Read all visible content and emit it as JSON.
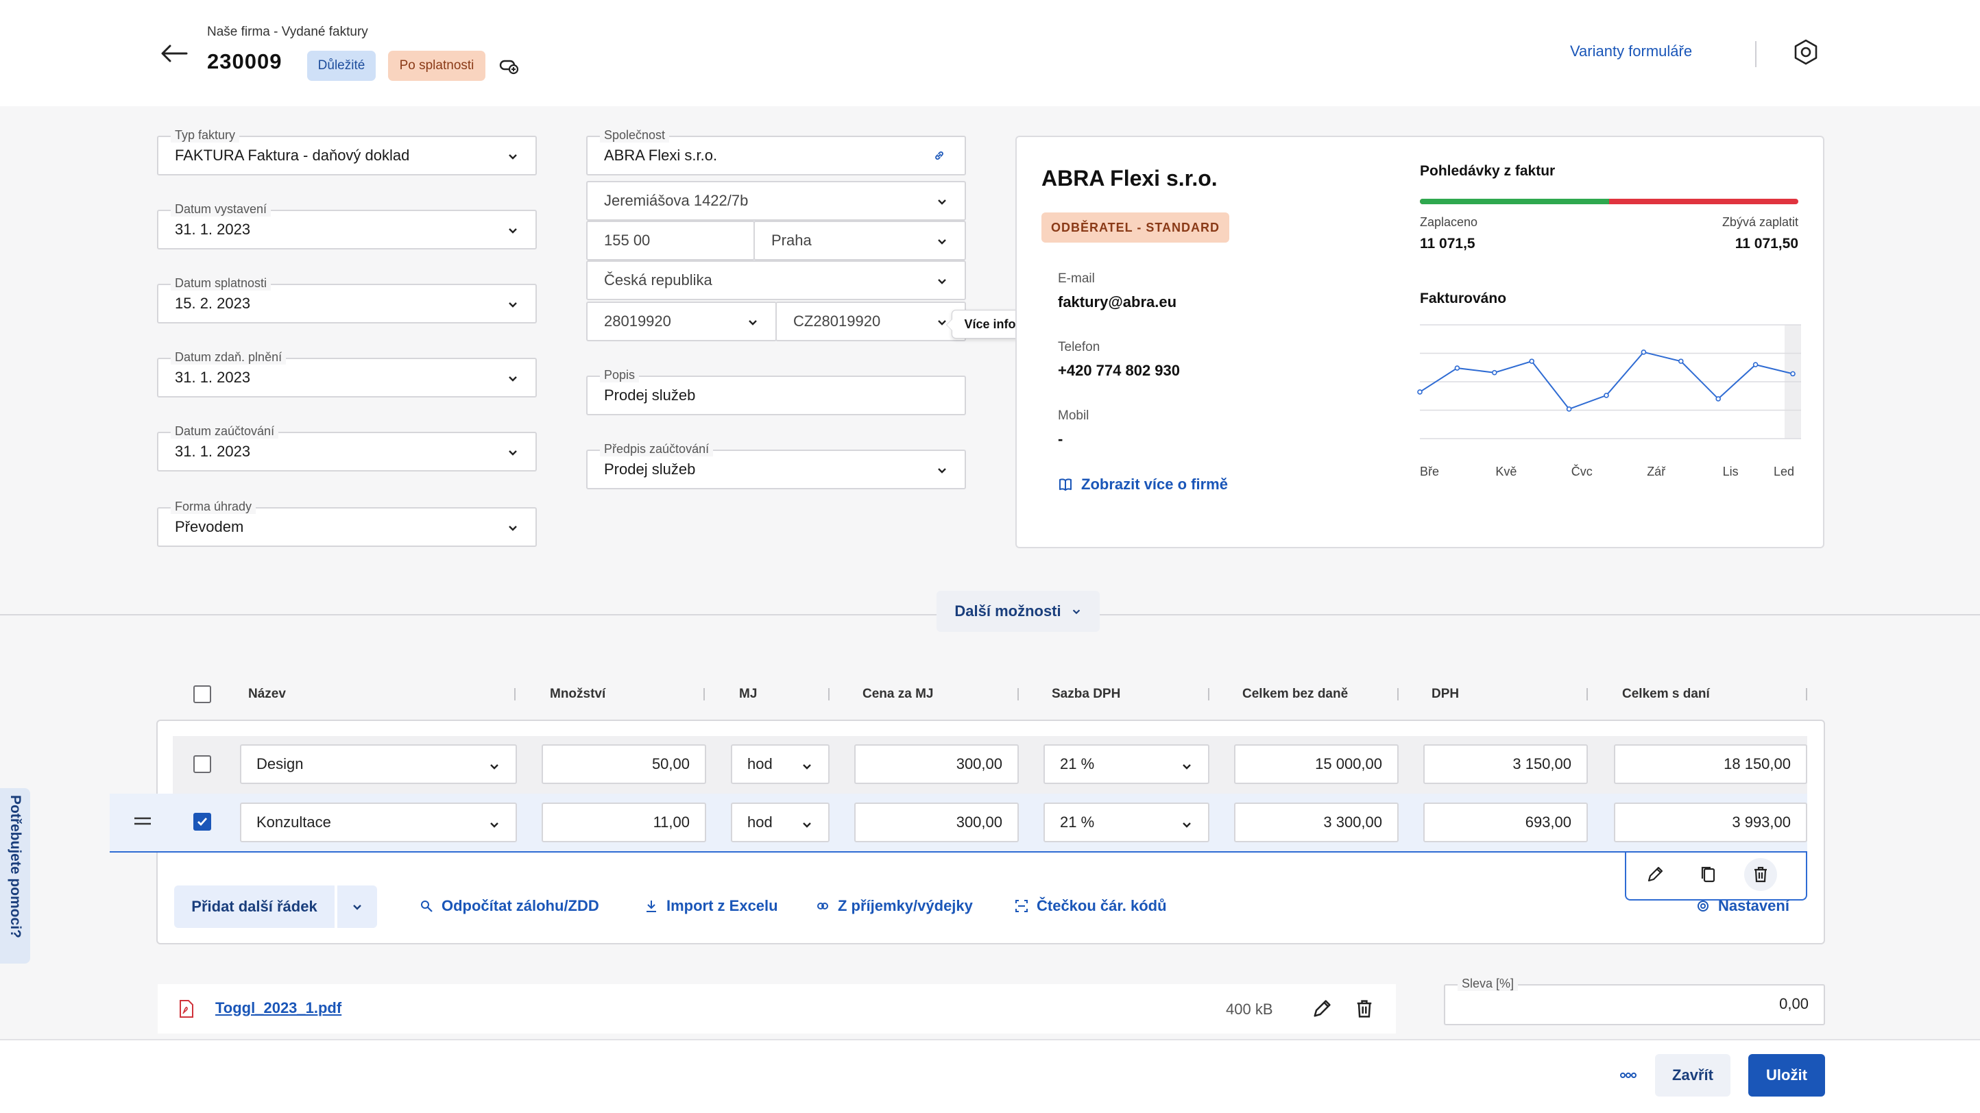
{
  "header": {
    "breadcrumb": "Naše firma - Vydané faktury",
    "invoice_number": "230009",
    "badge_important": "Důležité",
    "badge_overdue": "Po splatnosti",
    "variants_link": "Varianty formuláře"
  },
  "form": {
    "invoice_type": {
      "label": "Typ faktury",
      "value": "FAKTURA Faktura - daňový doklad"
    },
    "issue_date": {
      "label": "Datum vystavení",
      "value": "31. 1. 2023"
    },
    "due_date": {
      "label": "Datum splatnosti",
      "value": "15. 2. 2023"
    },
    "tax_date": {
      "label": "Datum zdaň. plnění",
      "value": "31. 1. 2023"
    },
    "accounting_date": {
      "label": "Datum zaúčtování",
      "value": "31. 1. 2023"
    },
    "payment_method": {
      "label": "Forma úhrady",
      "value": "Převodem"
    },
    "company": {
      "label": "Společnost",
      "value": "ABRA Flexi s.r.o."
    },
    "street": "Jeremiášova 1422/7b",
    "zip": "155 00",
    "city": "Praha",
    "country": "Česká republika",
    "ico": "28019920",
    "dic": "CZ28019920",
    "description": {
      "label": "Popis",
      "value": "Prodej služeb"
    },
    "accounting_rule": {
      "label": "Předpis zaúčtování",
      "value": "Prodej služeb"
    },
    "dic_tooltip": "Více informací o DIČ"
  },
  "company_card": {
    "name": "ABRA Flexi s.r.o.",
    "badge": "ODBĚRATEL - STANDARD",
    "email_label": "E-mail",
    "email": "faktury@abra.eu",
    "phone_label": "Telefon",
    "phone": "+420 774 802 930",
    "mobile_label": "Mobil",
    "mobile": "-",
    "more_link": "Zobrazit více o firmě",
    "receivables_title": "Pohledávky z faktur",
    "paid_label": "Zaplaceno",
    "paid_value": "11 071,5",
    "remaining_label": "Zbývá zaplatit",
    "remaining_value": "11 071,50",
    "paid_fraction": 0.5,
    "colors": {
      "paid": "#2fa84f",
      "remaining": "#e0343f"
    },
    "invoiced_title": "Fakturováno"
  },
  "chart_data": {
    "type": "line",
    "title": "Fakturováno",
    "x_tick_labels": [
      "Bře",
      "Kvě",
      "Čvc",
      "Zář",
      "Lis",
      "Led"
    ],
    "values": [
      0.41,
      0.62,
      0.58,
      0.68,
      0.26,
      0.38,
      0.76,
      0.68,
      0.35,
      0.65,
      0.57
    ],
    "ylim": [
      0,
      1
    ],
    "grid": true,
    "color": "#2e6bd3"
  },
  "more_options": "Další možnosti",
  "table": {
    "headers": [
      "Název",
      "Množství",
      "MJ",
      "Cena za MJ",
      "Sazba DPH",
      "Celkem bez daně",
      "DPH",
      "Celkem s daní"
    ],
    "rows": [
      {
        "name": "Design",
        "qty": "50,00",
        "unit": "hod",
        "price": "300,00",
        "vat_rate": "21 %",
        "total_excl": "15 000,00",
        "vat": "3 150,00",
        "total_incl": "18 150,00",
        "checked": false
      },
      {
        "name": "Konzultace",
        "qty": "11,00",
        "unit": "hod",
        "price": "300,00",
        "vat_rate": "21 %",
        "total_excl": "3 300,00",
        "vat": "693,00",
        "total_incl": "3 993,00",
        "checked": true
      }
    ],
    "add_row": "Přidat další řádek",
    "deduct_advance": "Odpočítat zálohu/ZDD",
    "import_excel": "Import z Excelu",
    "from_receipt": "Z příjemky/výdejky",
    "barcode": "Čtečkou čár. kódů",
    "settings": "Nastavení"
  },
  "attachment": {
    "filename": "Toggl_2023_1.pdf",
    "size": "400 kB"
  },
  "discount": {
    "label": "Sleva [%]",
    "value": "0,00"
  },
  "footer": {
    "close": "Zavřít",
    "save": "Uložit"
  },
  "help_tab": "Potřebujete pomoci?"
}
